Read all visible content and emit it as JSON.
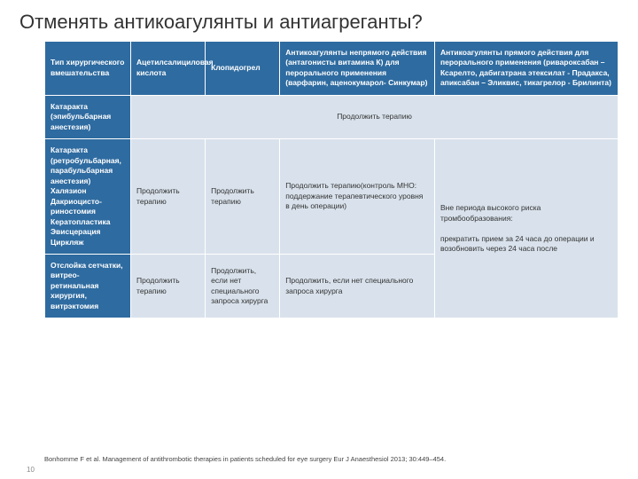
{
  "slide": {
    "title": "Отменять антикоагулянты и антиагреганты?",
    "citation": "Bonhomme F et al. Management of antithrombotic therapies in patients scheduled for eye surgery Eur J Anaesthesiol 2013; 30:449–454.",
    "page_number": "10"
  },
  "table": {
    "header_bg": "#2e6ba0",
    "header_fg": "#ffffff",
    "cell_bg": "#d9e2ec",
    "cell_fg": "#333333",
    "columns": [
      {
        "key": "type",
        "label": "Тип хирургического вмешательства",
        "width_pct": 15
      },
      {
        "key": "asa",
        "label": "Ацетилсалициловая кислота",
        "width_pct": 13
      },
      {
        "key": "clop",
        "label": "Клопидогрел",
        "width_pct": 13
      },
      {
        "key": "vitk",
        "label": "Антикоагулянты непрямого действия (антагонисты витамина К) для перорального применения (варфарин, аценокумарол- Синкумар)",
        "width_pct": 27
      },
      {
        "key": "doac",
        "label": "Антикоагулянты прямого действия для перорального применения (ривароксабан – Ксарелто, дабигатрана этексилат - Прадакса, апиксабан – Эликвис, тикагрелор - Брилинта)",
        "width_pct": 32
      }
    ],
    "rows": [
      {
        "head": "Катаракта (эпибульбарная анестезия)",
        "merged_4": "Продолжить терапию"
      },
      {
        "head": "Катаракта (ретробульбарная, парабульбарная анестезия)\nХалязион\nДакриоцисто-риностомия\nКератопластика\nЭвисцерация\nЦиркляж",
        "asa": "Продолжить терапию",
        "clop": "Продолжить терапию",
        "vitk": "Продолжить терапию(контроль МНО: поддержание терапевтического уровня в день операции)",
        "doac_rowspan2": "Вне периода высокого риска тромбообразования:\n\nпрекратить прием  за 24 часа до операции и возобновить через 24 часа после"
      },
      {
        "head": "Отслойка сетчатки, витрео-ретинальная хирургия, витрэктомия",
        "asa": "Продолжить терапию",
        "clop": "Продолжить, если нет специального запроса хирурга",
        "vitk": "Продолжить, если нет специального запроса хирурга"
      }
    ]
  }
}
